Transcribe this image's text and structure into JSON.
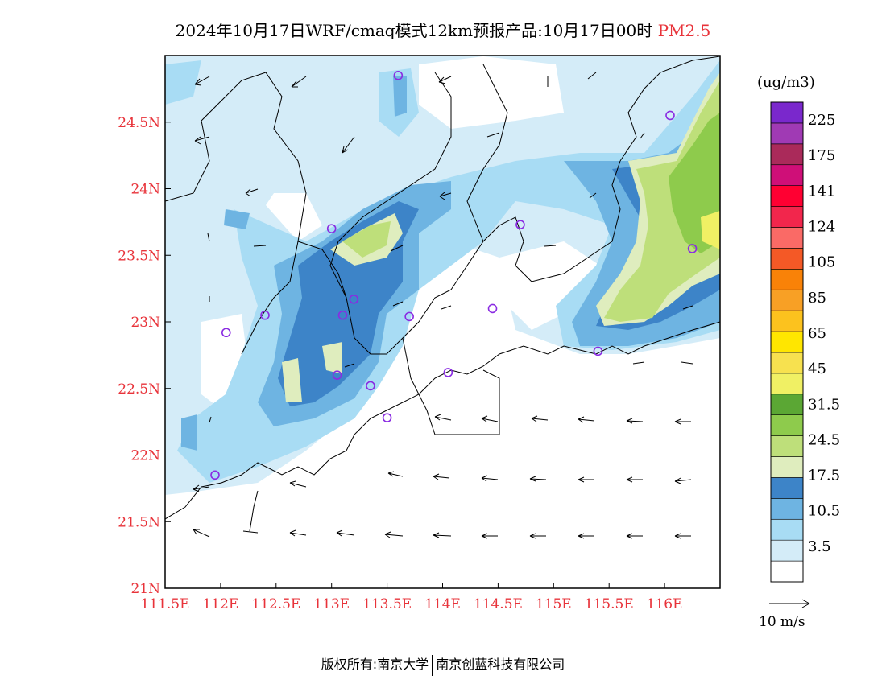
{
  "title": {
    "main": "2024年10月17日WRF/cmaq模式12km预报产品:10月17日00时",
    "variable": "PM2.5"
  },
  "map": {
    "lon_range": [
      111.5,
      116.5
    ],
    "lat_range": [
      21.0,
      25.0
    ],
    "x_ticks": [
      {
        "value": 111.5,
        "label": "111.5E"
      },
      {
        "value": 112.0,
        "label": "112E"
      },
      {
        "value": 112.5,
        "label": "112.5E"
      },
      {
        "value": 113.0,
        "label": "113E"
      },
      {
        "value": 113.5,
        "label": "113.5E"
      },
      {
        "value": 114.0,
        "label": "114E"
      },
      {
        "value": 114.5,
        "label": "114.5E"
      },
      {
        "value": 115.0,
        "label": "115E"
      },
      {
        "value": 115.5,
        "label": "115.5E"
      },
      {
        "value": 116.0,
        "label": "116E"
      }
    ],
    "y_ticks": [
      {
        "value": 21.0,
        "label": "21N"
      },
      {
        "value": 21.5,
        "label": "21.5N"
      },
      {
        "value": 22.0,
        "label": "22N"
      },
      {
        "value": 22.5,
        "label": "22.5N"
      },
      {
        "value": 23.0,
        "label": "23N"
      },
      {
        "value": 23.5,
        "label": "23.5N"
      },
      {
        "value": 24.0,
        "label": "24N"
      },
      {
        "value": 24.5,
        "label": "24.5N"
      }
    ],
    "stations": [
      {
        "lon": 113.6,
        "lat": 24.85
      },
      {
        "lon": 116.05,
        "lat": 24.55
      },
      {
        "lon": 113.0,
        "lat": 23.7
      },
      {
        "lon": 114.7,
        "lat": 23.73
      },
      {
        "lon": 116.25,
        "lat": 23.55
      },
      {
        "lon": 113.2,
        "lat": 23.17
      },
      {
        "lon": 112.4,
        "lat": 23.05
      },
      {
        "lon": 113.1,
        "lat": 23.05
      },
      {
        "lon": 113.7,
        "lat": 23.04
      },
      {
        "lon": 114.45,
        "lat": 23.1
      },
      {
        "lon": 112.05,
        "lat": 22.92
      },
      {
        "lon": 115.4,
        "lat": 22.78
      },
      {
        "lon": 113.05,
        "lat": 22.6
      },
      {
        "lon": 114.05,
        "lat": 22.62
      },
      {
        "lon": 113.35,
        "lat": 22.52
      },
      {
        "lon": 113.5,
        "lat": 22.28
      },
      {
        "lon": 111.95,
        "lat": 21.85
      }
    ]
  },
  "colorbar": {
    "unit": "(ug/m3)",
    "colors": [
      "#ffffff",
      "#d4ecf8",
      "#a8dcf4",
      "#6eb4e2",
      "#3d84c8",
      "#dfedbe",
      "#bedf7a",
      "#8ecb4c",
      "#5ba734",
      "#f0f064",
      "#f7e14f",
      "#ffe600",
      "#fcc21e",
      "#f8a025",
      "#f98208",
      "#f45926",
      "#fa6a66",
      "#f2264c",
      "#ff0032",
      "#cf0f78",
      "#aa2a5a",
      "#a03ab4",
      "#7a28cc"
    ],
    "labels": [
      {
        "index": 1,
        "text": "3.5"
      },
      {
        "index": 3,
        "text": "10.5"
      },
      {
        "index": 5,
        "text": "17.5"
      },
      {
        "index": 7,
        "text": "24.5"
      },
      {
        "index": 9,
        "text": "31.5"
      },
      {
        "index": 11,
        "text": "45"
      },
      {
        "index": 13,
        "text": "65"
      },
      {
        "index": 15,
        "text": "85"
      },
      {
        "index": 17,
        "text": "105"
      },
      {
        "index": 19,
        "text": "124"
      },
      {
        "index": 21,
        "text": "141"
      },
      {
        "index": 23,
        "text": "175"
      },
      {
        "index": 25,
        "text": "225"
      }
    ]
  },
  "wind_scale": {
    "label": "10 m/s"
  },
  "footer": {
    "left": "版权所有:南京大学",
    "right": "南京创蓝科技有限公司"
  }
}
